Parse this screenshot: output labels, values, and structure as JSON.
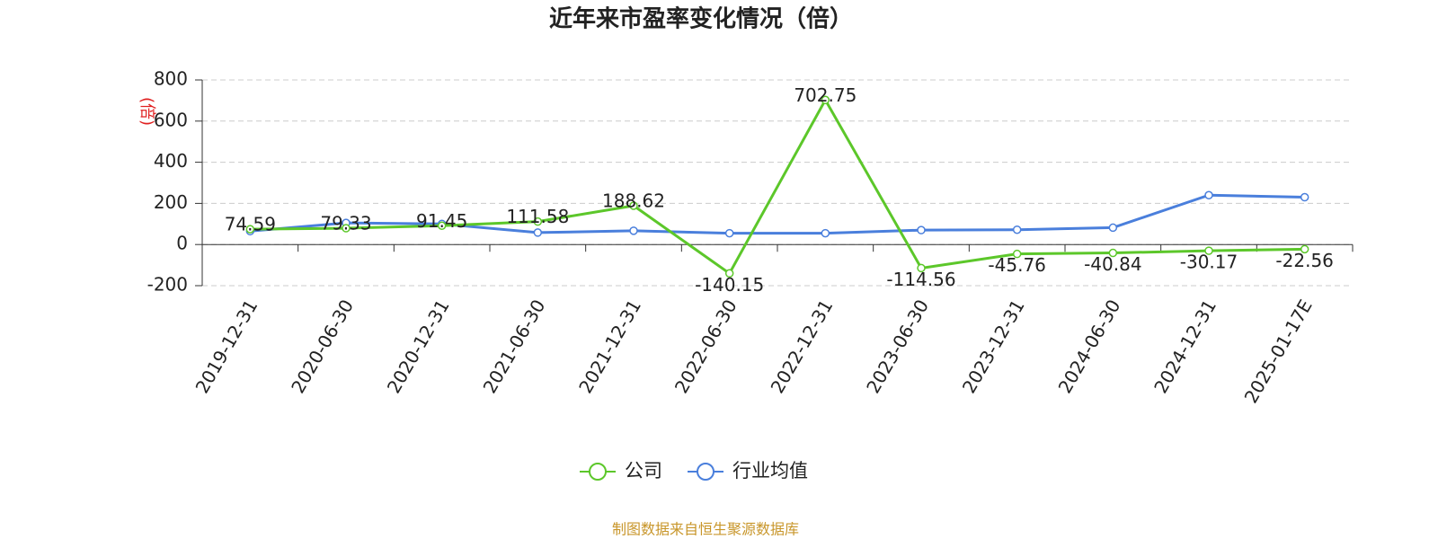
{
  "chart_data": {
    "type": "line",
    "title": "近年来市盈率变化情况（倍）",
    "y_label": "(倍)",
    "source": "制图数据来自恒生聚源数据库",
    "categories": [
      "2019-12-31",
      "2020-06-30",
      "2020-12-31",
      "2021-06-30",
      "2021-12-31",
      "2022-06-30",
      "2022-12-31",
      "2023-06-30",
      "2023-12-31",
      "2024-06-30",
      "2024-12-31",
      "2025-01-17E"
    ],
    "series": [
      {
        "name": "公司",
        "color": "#5cc72a",
        "show_labels": true,
        "values": [
          74.59,
          79.33,
          91.45,
          111.58,
          188.62,
          -140.15,
          702.75,
          -114.56,
          -45.76,
          -40.84,
          -30.17,
          -22.56
        ]
      },
      {
        "name": "行业均值",
        "color": "#4a7fdc",
        "show_labels": false,
        "values": [
          65,
          105,
          100,
          58,
          67,
          55,
          55,
          70,
          72,
          82,
          240,
          230
        ]
      }
    ],
    "ylim": [
      -200,
      800
    ],
    "yticks": [
      -200,
      0,
      200,
      400,
      600,
      800
    ],
    "grid": true
  }
}
